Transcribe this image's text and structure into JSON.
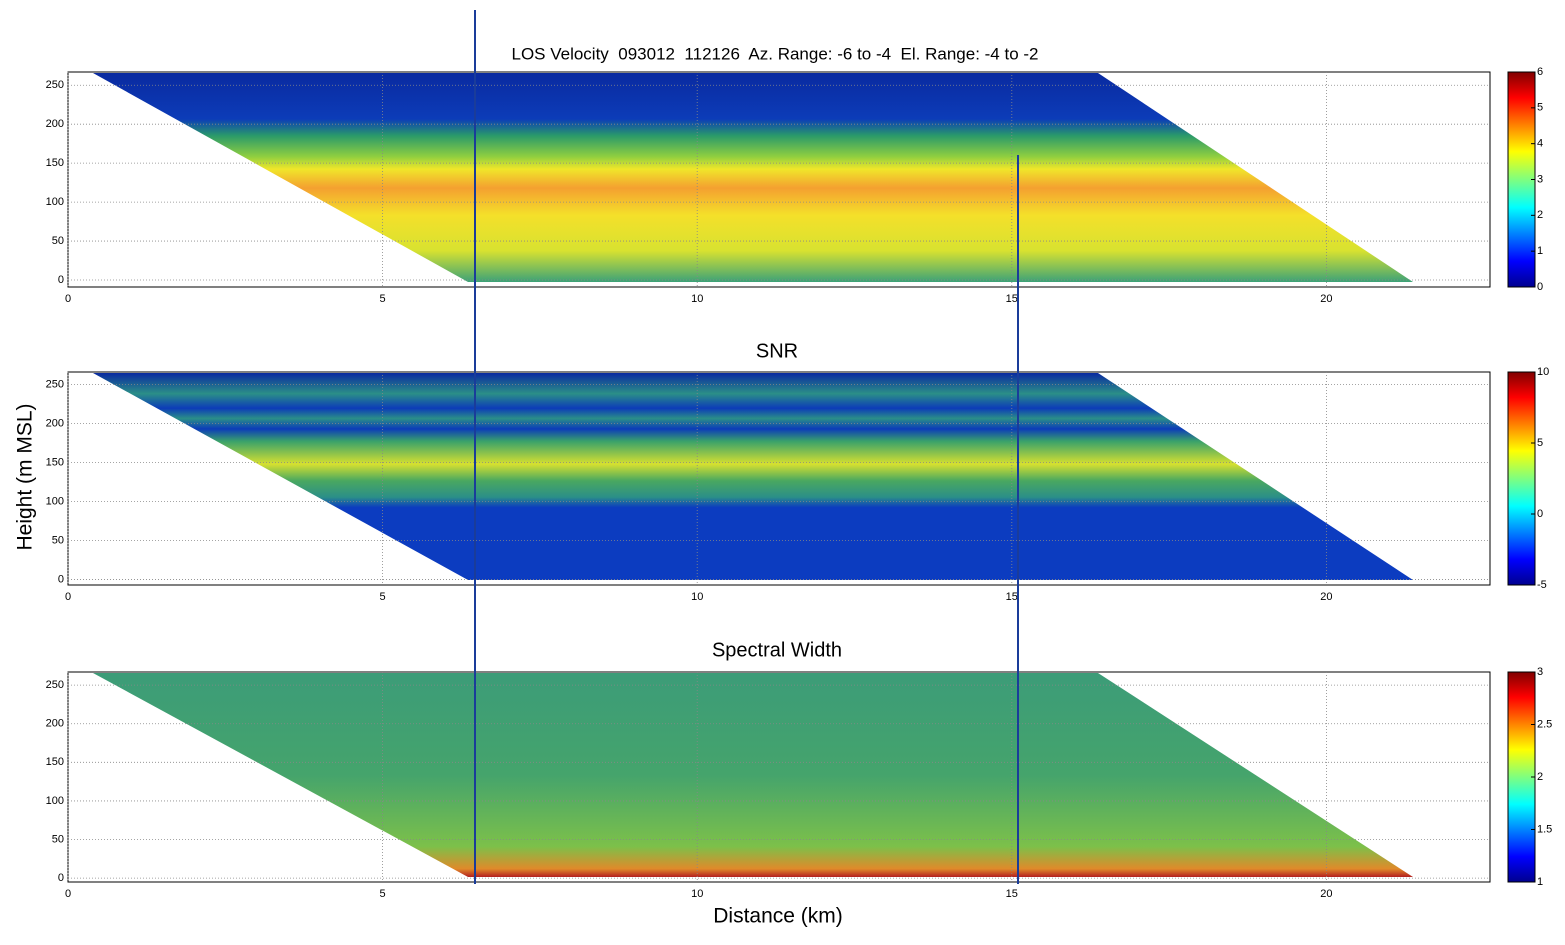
{
  "chart_data": [
    {
      "type": "heatmap",
      "title": "LOS Velocity  093012  112126  Az. Range: -6 to -4  El. Range: -4 to -2",
      "xlim": [
        0,
        22.6
      ],
      "xticks": [
        0,
        5,
        10,
        15,
        20
      ],
      "ylim": [
        -9,
        267
      ],
      "yticks": [
        0,
        50,
        100,
        150,
        200,
        250
      ],
      "clim": [
        0,
        6
      ],
      "cticks": [
        0,
        1,
        2,
        3,
        4,
        5,
        6
      ],
      "grid": true
    },
    {
      "type": "heatmap",
      "title": "SNR",
      "ylabel": "Height (m MSL)",
      "xlim": [
        0,
        22.6
      ],
      "xticks": [
        0,
        5,
        10,
        15,
        20
      ],
      "ylim": [
        -7,
        266
      ],
      "yticks": [
        0,
        50,
        100,
        150,
        200,
        250
      ],
      "clim": [
        -5,
        10
      ],
      "cticks": [
        -5,
        0,
        5,
        10
      ],
      "grid": true
    },
    {
      "type": "heatmap",
      "title": "Spectral Width",
      "xlabel": "Distance (km)",
      "xlim": [
        0,
        22.6
      ],
      "xticks": [
        0,
        5,
        10,
        15,
        20
      ],
      "ylim": [
        -5,
        267
      ],
      "yticks": [
        0,
        50,
        100,
        150,
        200,
        250
      ],
      "clim": [
        1,
        3
      ],
      "cticks": [
        1,
        1.5,
        2,
        2.5,
        3
      ],
      "grid": true
    }
  ]
}
